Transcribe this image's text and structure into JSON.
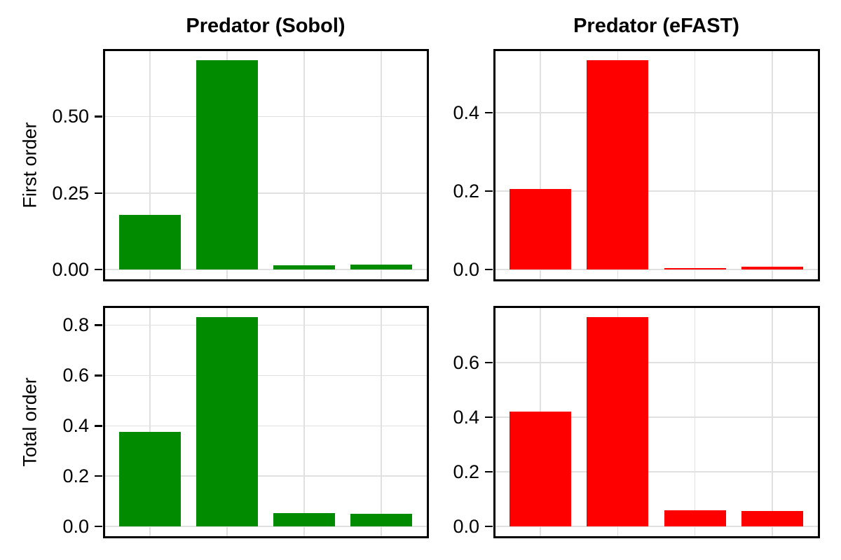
{
  "figure": {
    "background_color": "#FFFFFF",
    "panel_background_color": "#FFFFFF",
    "panel_border_color": "#000000",
    "grid_color": "#E0E0E0",
    "tick_color": "#000000",
    "text_color": "#000000",
    "grid": true,
    "legend": "none",
    "x_axis_labels": "none"
  },
  "chart_data": [
    {
      "type": "bar",
      "title": "Predator (Sobol)",
      "ylabel": "First order",
      "xlabel": "",
      "bar_color": "#008B00",
      "categories": [
        "",
        "",
        "",
        ""
      ],
      "values": [
        0.179,
        0.683,
        0.014,
        0.017
      ],
      "yticks": {
        "values": [
          0.0,
          0.25,
          0.5
        ],
        "labels": [
          "0.00",
          "0.25",
          "0.50"
        ]
      },
      "ylim": [
        -0.0341,
        0.7172
      ],
      "grid": true,
      "legend": "none"
    },
    {
      "type": "bar",
      "title": "Predator (eFAST)",
      "ylabel": "",
      "xlabel": "",
      "bar_color": "#FF0000",
      "categories": [
        "",
        "",
        "",
        ""
      ],
      "values": [
        0.205,
        0.533,
        0.004,
        0.007
      ],
      "yticks": {
        "values": [
          0.0,
          0.2,
          0.4
        ],
        "labels": [
          "0.0",
          "0.2",
          "0.4"
        ]
      },
      "ylim": [
        -0.0266,
        0.5597
      ],
      "grid": true,
      "legend": "none"
    },
    {
      "type": "bar",
      "title": "",
      "ylabel": "Total order",
      "xlabel": "",
      "bar_color": "#008B00",
      "categories": [
        "",
        "",
        "",
        ""
      ],
      "values": [
        0.376,
        0.832,
        0.053,
        0.051
      ],
      "yticks": {
        "values": [
          0.0,
          0.2,
          0.4,
          0.6,
          0.8
        ],
        "labels": [
          "0.0",
          "0.2",
          "0.4",
          "0.6",
          "0.8"
        ]
      },
      "ylim": [
        -0.0416,
        0.8736
      ],
      "grid": true,
      "legend": "none"
    },
    {
      "type": "bar",
      "title": "",
      "ylabel": "",
      "xlabel": "",
      "bar_color": "#FF0000",
      "categories": [
        "",
        "",
        "",
        ""
      ],
      "values": [
        0.421,
        0.766,
        0.059,
        0.057
      ],
      "yticks": {
        "values": [
          0.0,
          0.2,
          0.4,
          0.6
        ],
        "labels": [
          "0.0",
          "0.2",
          "0.4",
          "0.6"
        ]
      },
      "ylim": [
        -0.0383,
        0.8043
      ],
      "grid": true,
      "legend": "none"
    }
  ]
}
